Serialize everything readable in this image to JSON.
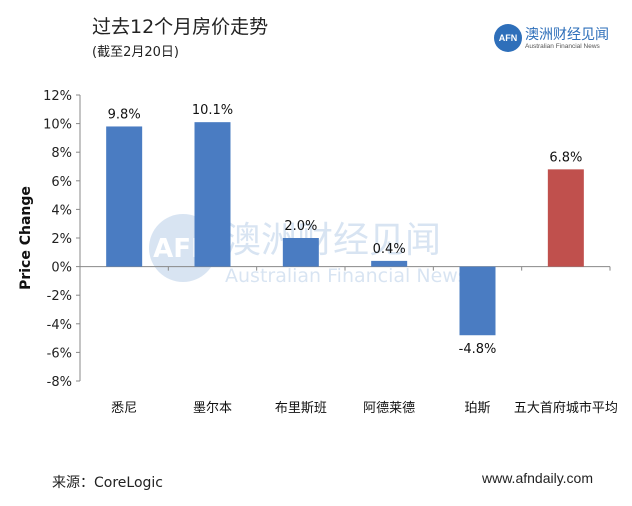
{
  "header": {
    "title": "过去12个月房价走势",
    "subtitle": "(截至2月20日)"
  },
  "logo": {
    "mark": "AFN",
    "name_cn": "澳洲财经见闻",
    "name_en": "Australian Financial News"
  },
  "watermark": {
    "mark": "AFN",
    "name_cn": "澳洲财经见闻",
    "name_en": "Australian Financial News"
  },
  "footer": {
    "source": "来源：CoreLogic",
    "website": "www.afndaily.com"
  },
  "colors": {
    "bar_default": "#4a7cc2",
    "bar_highlight": "#c0504d",
    "logo_blue": "#2e6fba"
  },
  "chart_data": {
    "type": "bar",
    "ylabel": "Price Change",
    "categories": [
      "悉尼",
      "墨尔本",
      "布里斯班",
      "阿德莱德",
      "珀斯",
      "五大首府城市平均"
    ],
    "values": [
      9.8,
      10.1,
      2.0,
      0.4,
      -4.8,
      6.8
    ],
    "data_labels": [
      "9.8%",
      "10.1%",
      "2.0%",
      "0.4%",
      "-4.8%",
      "6.8%"
    ],
    "highlight_index": 5,
    "ylim": [
      -8,
      12
    ],
    "yticks": [
      12,
      10,
      8,
      6,
      4,
      2,
      0,
      -2,
      -4,
      -6,
      -8
    ],
    "ytick_labels": [
      "12%",
      "10%",
      "8%",
      "6%",
      "4%",
      "2%",
      "0%",
      "-2%",
      "-4%",
      "-6%",
      "-8%"
    ],
    "grid": false,
    "legend": "none"
  }
}
